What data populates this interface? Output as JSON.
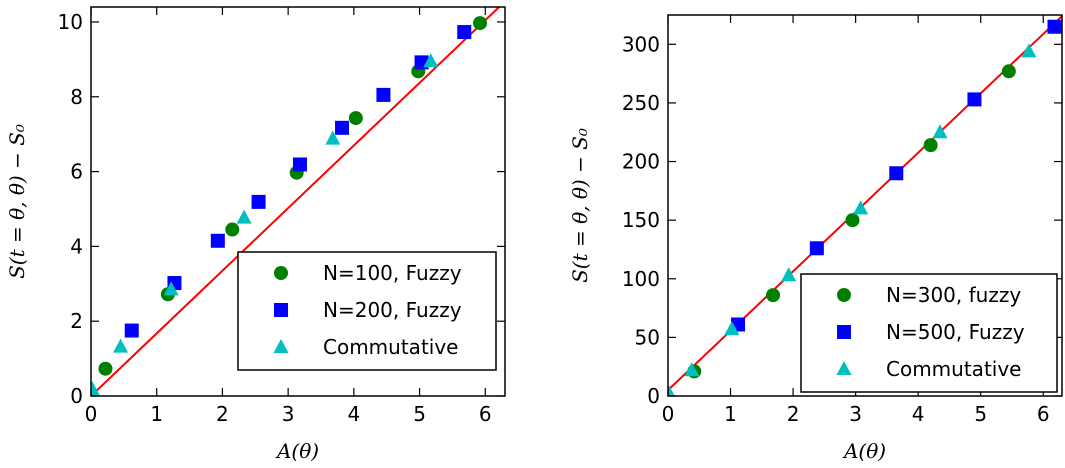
{
  "chart_data": [
    {
      "type": "scatter",
      "xlabel": "A(θ)",
      "ylabel": "S(t = θ, θ) − S₀",
      "xlim": [
        0,
        6.3
      ],
      "ylim": [
        0,
        10.4
      ],
      "xticks": [
        0,
        1,
        2,
        3,
        4,
        5,
        6
      ],
      "yticks": [
        0,
        2,
        4,
        6,
        8,
        10
      ],
      "grid": false,
      "legend_position": "lower-right",
      "fit_line": {
        "x": [
          0,
          6.3
        ],
        "y": [
          0,
          10.55
        ],
        "color": "#ff0000"
      },
      "series": [
        {
          "name": "N=100, Fuzzy",
          "marker": "circle",
          "color": "#007f00",
          "x": [
            0.22,
            1.17,
            2.15,
            3.13,
            4.03,
            4.98,
            5.92
          ],
          "y": [
            0.73,
            2.72,
            4.45,
            5.97,
            7.43,
            8.68,
            9.97
          ]
        },
        {
          "name": "N=200, Fuzzy",
          "marker": "square",
          "color": "#0000ff",
          "x": [
            0.62,
            1.27,
            1.93,
            2.55,
            3.18,
            3.82,
            4.45,
            5.03,
            5.68
          ],
          "y": [
            1.75,
            3.02,
            4.15,
            5.19,
            6.19,
            7.17,
            8.05,
            8.92,
            9.73
          ]
        },
        {
          "name": "Commutative",
          "marker": "triangle",
          "color": "#00bfbf",
          "x": [
            0.02,
            0.45,
            1.22,
            2.33,
            3.68,
            5.17
          ],
          "y": [
            0.18,
            1.32,
            2.85,
            4.77,
            6.88,
            8.95
          ]
        }
      ]
    },
    {
      "type": "scatter",
      "xlabel": "A(θ)",
      "ylabel": "S(t = θ, θ) − S₀",
      "xlim": [
        0,
        6.3
      ],
      "ylim": [
        0,
        325
      ],
      "xticks": [
        0,
        1,
        2,
        3,
        4,
        5,
        6
      ],
      "yticks": [
        0,
        50,
        100,
        150,
        200,
        250,
        300
      ],
      "grid": false,
      "legend_position": "lower-right",
      "fit_line": {
        "x": [
          0,
          6.3
        ],
        "y": [
          5,
          324
        ],
        "color": "#ff0000"
      },
      "series": [
        {
          "name": "N=300, fuzzy",
          "marker": "circle",
          "color": "#007f00",
          "x": [
            0.42,
            1.68,
            2.95,
            4.2,
            5.45
          ],
          "y": [
            21,
            86,
            150,
            214,
            277
          ]
        },
        {
          "name": "N=500, Fuzzy",
          "marker": "square",
          "color": "#0000ff",
          "x": [
            1.12,
            2.38,
            3.65,
            4.9,
            6.18
          ],
          "y": [
            61,
            126,
            190,
            253,
            315
          ]
        },
        {
          "name": "Commutative",
          "marker": "triangle",
          "color": "#00bfbf",
          "x": [
            0.02,
            0.38,
            1.02,
            1.93,
            3.08,
            4.35,
            5.77
          ],
          "y": [
            2,
            22,
            57,
            103,
            160,
            225,
            294
          ]
        }
      ]
    }
  ]
}
